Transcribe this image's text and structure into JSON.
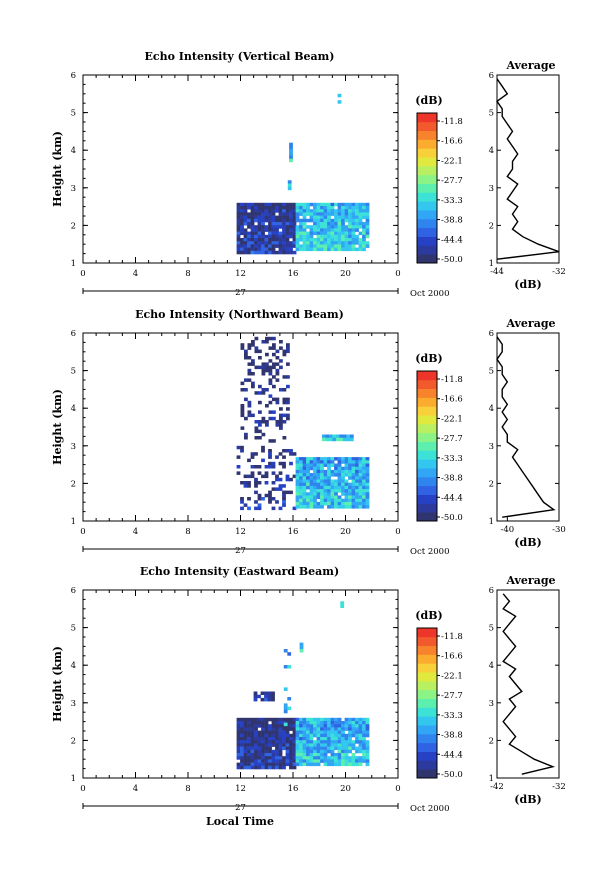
{
  "footer_label": "Local Time",
  "colorbar": {
    "unit": "(dB)",
    "ticks": [
      "-11.8",
      "-16.6",
      "-22.1",
      "-27.7",
      "-33.3",
      "-38.8",
      "-44.4",
      "-50.0"
    ],
    "colors": [
      "#31356f",
      "#2b3a9c",
      "#2741c5",
      "#2f63e3",
      "#2f84ee",
      "#30a6f4",
      "#33c7f0",
      "#3ce2d6",
      "#5cefae",
      "#8cf486",
      "#b8f062",
      "#e0ea3e",
      "#f7d03a",
      "#fbac2e",
      "#f7842d",
      "#f25a2d",
      "#ed3529"
    ]
  },
  "chart_data": [
    {
      "type": "heatmap",
      "title": "Echo Intensity (Vertical Beam)",
      "ylabel": "Height (km)",
      "x_ticks": [
        "0",
        "4",
        "8",
        "12",
        "16",
        "20",
        "0"
      ],
      "date_ticks": [
        "27",
        "Oct 2000"
      ],
      "xlim": [
        0,
        24
      ],
      "ylim": [
        1,
        6
      ],
      "y_ticks": [
        "1",
        "2",
        "3",
        "4",
        "5",
        "6"
      ],
      "clim": [
        -50.0,
        -11.8
      ],
      "grid": false,
      "echo_regions": [
        {
          "t0": 11.7,
          "t1": 16.2,
          "h0": 1.3,
          "h1": 2.6,
          "db": -45
        },
        {
          "t0": 16.2,
          "t1": 21.6,
          "h0": 1.4,
          "h1": 2.6,
          "db": -34
        },
        {
          "t0": 15.6,
          "t1": 15.8,
          "h0": 3.0,
          "h1": 3.2,
          "db": -35
        },
        {
          "t0": 15.7,
          "t1": 15.9,
          "h0": 3.7,
          "h1": 4.2,
          "db": -34
        },
        {
          "t0": 19.4,
          "t1": 19.6,
          "h0": 5.3,
          "h1": 5.5,
          "db": -34
        }
      ],
      "profile": {
        "title": "Average",
        "xlabel": "(dB)",
        "x_ticks": [
          "-44",
          "-32"
        ],
        "xlim": [
          -44,
          -32
        ],
        "heights": [
          1.1,
          1.3,
          1.5,
          1.7,
          1.9,
          2.1,
          2.3,
          2.5,
          2.7,
          2.9,
          3.1,
          3.3,
          3.5,
          3.7,
          3.9,
          4.1,
          4.3,
          4.5,
          4.7,
          4.9,
          5.1,
          5.3,
          5.5,
          5.7,
          5.9
        ],
        "values": [
          -44,
          -32,
          -36,
          -39,
          -41,
          -40,
          -41,
          -40,
          -42,
          -41,
          -40,
          -42,
          -41,
          -41,
          -40,
          -41,
          -42,
          -41,
          -42,
          -43,
          -43,
          -44,
          -42,
          -43,
          -44
        ]
      }
    },
    {
      "type": "heatmap",
      "title": "Echo Intensity (Northward Beam)",
      "ylabel": "Height (km)",
      "x_ticks": [
        "0",
        "4",
        "8",
        "12",
        "16",
        "20",
        "0"
      ],
      "date_ticks": [
        "27",
        "Oct 2000"
      ],
      "xlim": [
        0,
        24
      ],
      "ylim": [
        1,
        6
      ],
      "y_ticks": [
        "1",
        "2",
        "3",
        "4",
        "5",
        "6"
      ],
      "clim": [
        -50.0,
        -11.8
      ],
      "grid": false,
      "echo_regions": [
        {
          "t0": 11.7,
          "t1": 16.2,
          "h0": 1.3,
          "h1": 3.0,
          "db": -46
        },
        {
          "t0": 16.2,
          "t1": 21.6,
          "h0": 1.4,
          "h1": 2.7,
          "db": -35
        },
        {
          "t0": 12.0,
          "t1": 15.5,
          "h0": 3.1,
          "h1": 5.9,
          "db": -48
        },
        {
          "t0": 18.2,
          "t1": 20.6,
          "h0": 3.2,
          "h1": 3.3,
          "db": -34
        }
      ],
      "profile": {
        "title": "Average",
        "xlabel": "(dB)",
        "x_ticks": [
          "-40",
          "-30"
        ],
        "xlim": [
          -42,
          -30
        ],
        "heights": [
          1.1,
          1.3,
          1.5,
          1.7,
          1.9,
          2.1,
          2.3,
          2.5,
          2.7,
          2.9,
          3.1,
          3.3,
          3.5,
          3.7,
          3.9,
          4.1,
          4.3,
          4.5,
          4.7,
          4.9,
          5.1,
          5.3,
          5.5,
          5.7,
          5.9
        ],
        "values": [
          -41,
          -31,
          -33,
          -34,
          -35,
          -36,
          -37,
          -38,
          -39,
          -38,
          -40,
          -40,
          -41,
          -40,
          -41,
          -40,
          -41,
          -41,
          -40,
          -41,
          -41,
          -42,
          -41,
          -41,
          -42
        ]
      }
    },
    {
      "type": "heatmap",
      "title": "Echo Intensity (Eastward Beam)",
      "ylabel": "Height (km)",
      "xlabel": "Local Time",
      "x_ticks": [
        "0",
        "4",
        "8",
        "12",
        "16",
        "20",
        "0"
      ],
      "date_ticks": [
        "27",
        "Oct 2000"
      ],
      "xlim": [
        0,
        24
      ],
      "ylim": [
        1,
        6
      ],
      "y_ticks": [
        "1",
        "2",
        "3",
        "4",
        "5",
        "6"
      ],
      "clim": [
        -50.0,
        -11.8
      ],
      "grid": false,
      "echo_regions": [
        {
          "t0": 11.7,
          "t1": 16.2,
          "h0": 1.3,
          "h1": 2.6,
          "db": -46
        },
        {
          "t0": 16.2,
          "t1": 21.6,
          "h0": 1.4,
          "h1": 2.6,
          "db": -35
        },
        {
          "t0": 13.0,
          "t1": 14.4,
          "h0": 3.1,
          "h1": 3.3,
          "db": -47
        },
        {
          "t0": 15.3,
          "t1": 15.6,
          "h0": 2.4,
          "h1": 4.6,
          "db": -36
        },
        {
          "t0": 16.5,
          "t1": 16.7,
          "h0": 4.4,
          "h1": 4.6,
          "db": -33
        },
        {
          "t0": 19.6,
          "t1": 19.8,
          "h0": 5.6,
          "h1": 5.7,
          "db": -34
        }
      ],
      "profile": {
        "title": "Average",
        "xlabel": "(dB)",
        "x_ticks": [
          "-42",
          "-32"
        ],
        "xlim": [
          -42,
          -32
        ],
        "heights": [
          1.1,
          1.3,
          1.5,
          1.7,
          1.9,
          2.1,
          2.3,
          2.5,
          2.7,
          2.9,
          3.1,
          3.3,
          3.5,
          3.7,
          3.9,
          4.1,
          4.3,
          4.5,
          4.7,
          4.9,
          5.1,
          5.3,
          5.5,
          5.7,
          5.9
        ],
        "values": [
          -38,
          -33,
          -36,
          -38,
          -40,
          -39,
          -40,
          -41,
          -40,
          -39,
          -40,
          -38,
          -39,
          -40,
          -39,
          -41,
          -40,
          -39,
          -40,
          -41,
          -40,
          -39,
          -41,
          -40,
          -41
        ]
      }
    }
  ]
}
